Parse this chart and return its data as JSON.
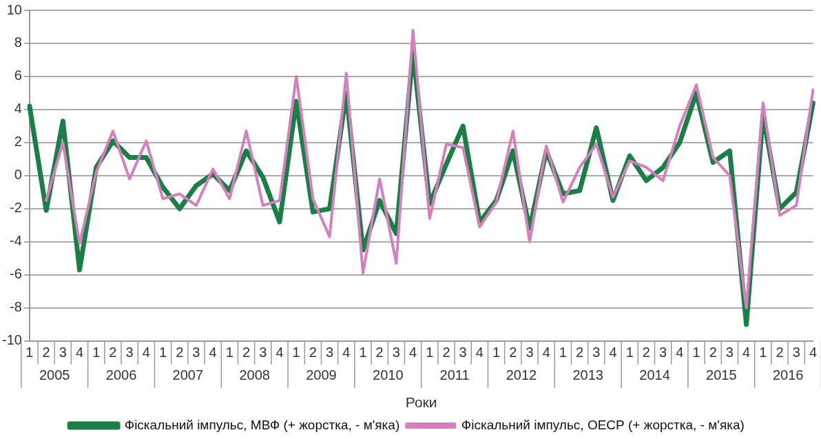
{
  "chart_data": {
    "type": "line",
    "xlabel": "Роки",
    "categories": [
      "1",
      "2",
      "3",
      "4",
      "1",
      "2",
      "3",
      "4",
      "1",
      "2",
      "3",
      "4",
      "1",
      "2",
      "3",
      "4",
      "1",
      "2",
      "3",
      "4",
      "1",
      "2",
      "3",
      "4",
      "1",
      "2",
      "3",
      "4",
      "1",
      "2",
      "3",
      "4",
      "1",
      "2",
      "3",
      "4",
      "1",
      "2",
      "3",
      "4",
      "1",
      "2",
      "3",
      "4",
      "1",
      "2",
      "3",
      "4"
    ],
    "annotations": [
      "2005",
      "2006",
      "2007",
      "2008",
      "2009",
      "2010",
      "2011",
      "2012",
      "2013",
      "2014",
      "2015",
      "2016"
    ],
    "series": [
      {
        "name": "Фіскальний імпульс, МВФ (+ жорстка, - м'яка)",
        "color": "#1a7f45",
        "values": [
          4.2,
          -2.1,
          3.3,
          -5.7,
          0.5,
          2.1,
          1.1,
          1.1,
          -0.7,
          -2.0,
          -0.6,
          0.1,
          -0.9,
          1.5,
          -0.1,
          -2.8,
          4.5,
          -2.2,
          -2.0,
          5.0,
          -4.5,
          -1.5,
          -3.5,
          7.5,
          -1.7,
          0.7,
          3.0,
          -2.8,
          -1.5,
          1.5,
          -3.2,
          1.5,
          -1.1,
          -0.9,
          2.9,
          -1.5,
          1.2,
          -0.3,
          0.5,
          2.0,
          5.0,
          0.8,
          1.5,
          -9.0,
          3.7,
          -2.0,
          -1.0,
          4.4
        ]
      },
      {
        "name": "Фіскальний імпульс, ОЕСР (+ жорстка, - м'яка)",
        "color": "#d67fbf",
        "values": [
          null,
          -1.5,
          2.0,
          -4.1,
          0.2,
          2.7,
          -0.2,
          2.1,
          -1.4,
          -1.1,
          -1.8,
          0.4,
          -1.4,
          2.7,
          -1.8,
          -1.5,
          6.0,
          -1.4,
          -3.7,
          6.2,
          -5.9,
          -0.2,
          -5.3,
          8.8,
          -2.6,
          1.9,
          1.7,
          -3.1,
          -1.6,
          2.7,
          -4.0,
          1.8,
          -1.6,
          0.5,
          1.9,
          -1.3,
          0.9,
          0.5,
          -0.3,
          3.0,
          5.5,
          1.1,
          0.0,
          -8.0,
          4.4,
          -2.4,
          -1.8,
          5.2
        ]
      }
    ],
    "ylim": [
      -10,
      10
    ],
    "yticks": [
      -10,
      -8,
      -6,
      -4,
      -2,
      0,
      2,
      4,
      6,
      8,
      10
    ],
    "grid": "y",
    "legend": "bottom",
    "marker": "none",
    "line_style": "solid"
  }
}
